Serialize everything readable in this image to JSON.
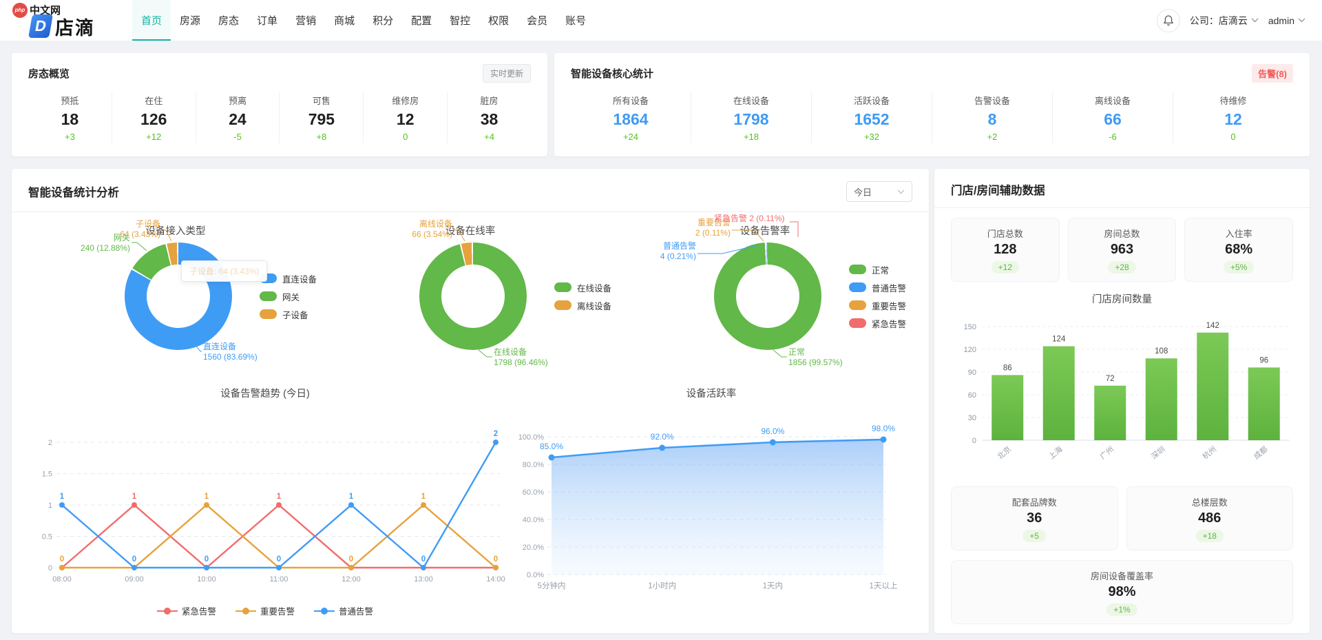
{
  "header": {
    "logo": {
      "php": "php",
      "cn": "中文网",
      "d": "D",
      "brand": "店滴"
    },
    "nav": [
      {
        "label": "首页",
        "active": true
      },
      {
        "label": "房源",
        "active": false
      },
      {
        "label": "房态",
        "active": false
      },
      {
        "label": "订单",
        "active": false
      },
      {
        "label": "营销",
        "active": false
      },
      {
        "label": "商城",
        "active": false
      },
      {
        "label": "积分",
        "active": false
      },
      {
        "label": "配置",
        "active": false
      },
      {
        "label": "智控",
        "active": false
      },
      {
        "label": "权限",
        "active": false
      },
      {
        "label": "会员",
        "active": false
      },
      {
        "label": "账号",
        "active": false
      }
    ],
    "right": {
      "company_label": "公司：店滴云",
      "user": "admin"
    }
  },
  "room_status": {
    "title": "房态概览",
    "badge": "实时更新",
    "stats": [
      {
        "label": "预抵",
        "value": "18",
        "delta": "+3"
      },
      {
        "label": "在住",
        "value": "126",
        "delta": "+12"
      },
      {
        "label": "预离",
        "value": "24",
        "delta": "-5"
      },
      {
        "label": "可售",
        "value": "795",
        "delta": "+8"
      },
      {
        "label": "维修房",
        "value": "12",
        "delta": "0"
      },
      {
        "label": "脏房",
        "value": "38",
        "delta": "+4"
      }
    ]
  },
  "device_core": {
    "title": "智能设备核心统计",
    "badge": "告警(8)",
    "stats": [
      {
        "label": "所有设备",
        "value": "1864",
        "delta": "+24"
      },
      {
        "label": "在线设备",
        "value": "1798",
        "delta": "+18"
      },
      {
        "label": "活跃设备",
        "value": "1652",
        "delta": "+32"
      },
      {
        "label": "告警设备",
        "value": "8",
        "delta": "+2"
      },
      {
        "label": "离线设备",
        "value": "66",
        "delta": "-6"
      },
      {
        "label": "待维修",
        "value": "12",
        "delta": "0"
      }
    ]
  },
  "analysis": {
    "title": "智能设备统计分析",
    "range_select": "今日"
  },
  "aux": {
    "title": "门店/房间辅助数据",
    "cards_top": [
      {
        "label": "门店总数",
        "value": "128",
        "delta": "+12"
      },
      {
        "label": "房间总数",
        "value": "963",
        "delta": "+28"
      },
      {
        "label": "入住率",
        "value": "68%",
        "delta": "+5%"
      }
    ],
    "cards_mid": [
      {
        "label": "配套品牌数",
        "value": "36",
        "delta": "+5"
      },
      {
        "label": "总楼层数",
        "value": "486",
        "delta": "+18"
      }
    ],
    "card_bottom": {
      "label": "房间设备覆盖率",
      "value": "98%",
      "delta": "+1%"
    }
  },
  "colors": {
    "accent_teal": "#0fb3a3",
    "stat_blue": "#3e9bf4",
    "delta_green": "#52c41a",
    "alarm_red": "#f25a5a"
  },
  "chart_data": [
    {
      "id": "access_type",
      "type": "pie",
      "title": "设备接入类型",
      "slices": [
        {
          "name": "直连设备",
          "value": 1560,
          "pct": "83.69%",
          "color": "#3f9cf5"
        },
        {
          "name": "网关",
          "value": 240,
          "pct": "12.88%",
          "color": "#62b848"
        },
        {
          "name": "子设备",
          "value": 64,
          "pct": "3.43%",
          "color": "#e6a23c"
        }
      ],
      "tooltip": "子设备: 64 (3.43%)"
    },
    {
      "id": "online_rate",
      "type": "pie",
      "title": "设备在线率",
      "slices": [
        {
          "name": "在线设备",
          "value": 1798,
          "pct": "96.46%",
          "color": "#62b848"
        },
        {
          "name": "离线设备",
          "value": 66,
          "pct": "3.54%",
          "color": "#e6a23c"
        }
      ]
    },
    {
      "id": "alarm_rate",
      "type": "pie",
      "title": "设备告警率",
      "slices": [
        {
          "name": "正常",
          "value": 1856,
          "pct": "99.57%",
          "color": "#62b848"
        },
        {
          "name": "普通告警",
          "value": 4,
          "pct": "0.21%",
          "color": "#3f9cf5"
        },
        {
          "name": "重要告警",
          "value": 2,
          "pct": "0.11%",
          "color": "#e6a23c"
        },
        {
          "name": "紧急告警",
          "value": 2,
          "pct": "0.11%",
          "color": "#f16c6c"
        }
      ]
    },
    {
      "id": "alarm_trend",
      "type": "line",
      "title": "设备告警趋势 (今日)",
      "categories": [
        "08:00",
        "09:00",
        "10:00",
        "11:00",
        "12:00",
        "13:00",
        "14:00"
      ],
      "yticks": [
        0,
        0.5,
        1,
        1.5,
        2
      ],
      "ylim": [
        0,
        2
      ],
      "grid": "dashed",
      "legend_position": "bottom",
      "series": [
        {
          "name": "紧急告警",
          "color": "#f16c6c",
          "values": [
            0,
            1,
            0,
            1,
            0,
            0,
            0
          ]
        },
        {
          "name": "重要告警",
          "color": "#e6a23c",
          "values": [
            0,
            0,
            1,
            0,
            0,
            1,
            0
          ]
        },
        {
          "name": "普通告警",
          "color": "#3f9cf5",
          "values": [
            1,
            0,
            0,
            0,
            1,
            0,
            2
          ]
        }
      ]
    },
    {
      "id": "active_rate",
      "type": "area",
      "title": "设备活跃率",
      "categories": [
        "5分钟内",
        "1小时内",
        "1天内",
        "1天以上"
      ],
      "values": [
        85,
        92,
        96,
        98
      ],
      "point_labels": [
        "85.0%",
        "92.0%",
        "96.0%",
        "98.0%"
      ],
      "yticks": [
        "0.0%",
        "20.0%",
        "40.0%",
        "60.0%",
        "80.0%",
        "100.0%"
      ],
      "ylim": [
        0,
        100
      ],
      "grid": "dashed",
      "color": "#3f9cf5"
    },
    {
      "id": "store_rooms",
      "type": "bar",
      "title": "门店房间数量",
      "categories": [
        "北京",
        "上海",
        "广州",
        "深圳",
        "杭州",
        "成都"
      ],
      "values": [
        86,
        124,
        72,
        108,
        142,
        96
      ],
      "yticks": [
        0,
        30,
        60,
        90,
        120,
        150
      ],
      "ylim": [
        0,
        150
      ],
      "grid": "dashed",
      "color": "#6abf4b"
    }
  ]
}
